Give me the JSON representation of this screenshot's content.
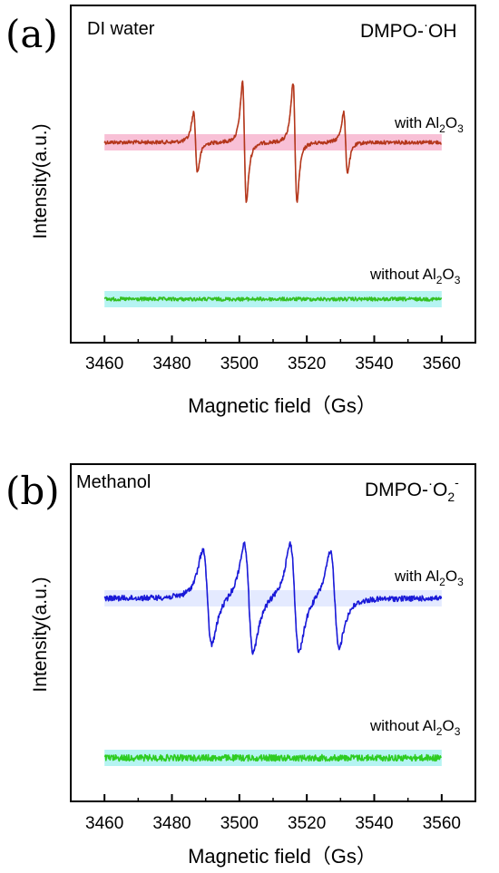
{
  "chart_data": [
    {
      "type": "line",
      "panel": "(a)",
      "solvent": "DI water",
      "species": {
        "main": "DMPO-",
        "dot": "·",
        "rest": "OH",
        "sub": "",
        "sup": ""
      },
      "xlabel": "Magnetic field（Gs）",
      "ylabel": "Intensity(a.u.)",
      "xlim": [
        3450,
        3570
      ],
      "xticks": [
        3460,
        3480,
        3500,
        3520,
        3540,
        3560
      ],
      "series": [
        {
          "name": "with Al2O3",
          "label_main": "with Al",
          "label_sub1": "2",
          "label_mid": "O",
          "label_sub2": "3",
          "color": "#c8301e",
          "noise_color": "#7a4a14",
          "highlight": "#f7b5cf",
          "x_range": [
            3460,
            3560
          ],
          "baseline": 0.0,
          "peaks": [
            {
              "x": 3487.0,
              "amplitude": 0.3
            },
            {
              "x": 3501.5,
              "amplitude": 0.6
            },
            {
              "x": 3516.5,
              "amplitude": 0.6
            },
            {
              "x": 3531.5,
              "amplitude": 0.3
            }
          ]
        },
        {
          "name": "without Al2O3",
          "label_main": "without Al",
          "label_sub1": "2",
          "label_mid": "O",
          "label_sub2": "3",
          "color": "#22cc22",
          "noise_color": "#6a9a20",
          "highlight": "#a8f2f0",
          "x_range": [
            3460,
            3560
          ],
          "baseline": -1.0,
          "peaks": []
        }
      ]
    },
    {
      "type": "line",
      "panel": "(b)",
      "solvent": "Methanol",
      "species": {
        "main": "DMPO-",
        "dot": "·",
        "rest": "O",
        "sub": "2",
        "sup": "-"
      },
      "xlabel": "Magnetic field（Gs）",
      "ylabel": "Intensity(a.u.)",
      "xlim": [
        3450,
        3570
      ],
      "xticks": [
        3460,
        3480,
        3500,
        3520,
        3540,
        3560
      ],
      "series": [
        {
          "name": "with Al2O3",
          "label_main": "with Al",
          "label_sub1": "2",
          "label_mid": "O",
          "label_sub2": "3",
          "color": "#1a1ad8",
          "noise_color": "#1a1ad8",
          "highlight": "#dfe6ff",
          "x_range": [
            3460,
            3560
          ],
          "baseline": 0.0,
          "peaks": [
            {
              "x": 3490.5,
              "amplitude": 0.48
            },
            {
              "x": 3502.8,
              "amplitude": 0.55
            },
            {
              "x": 3516.4,
              "amplitude": 0.55
            },
            {
              "x": 3528.3,
              "amplitude": 0.48
            }
          ]
        },
        {
          "name": "without Al2O3",
          "label_main": "without Al",
          "label_sub1": "2",
          "label_mid": "O",
          "label_sub2": "3",
          "color": "#22cc22",
          "noise_color": "#55cc22",
          "highlight": "#a8f2f0",
          "x_range": [
            3460,
            3560
          ],
          "baseline": -1.0,
          "peaks": []
        }
      ]
    }
  ]
}
